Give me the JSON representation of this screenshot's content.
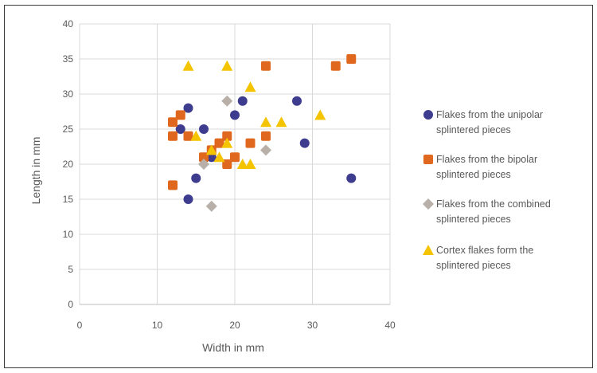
{
  "chart_data": {
    "type": "scatter",
    "title": "",
    "xlabel": "Width in mm",
    "ylabel": "Length in mm",
    "xlim": [
      0,
      40
    ],
    "ylim": [
      0,
      40
    ],
    "x_ticks": [
      "0",
      "10",
      "20",
      "30",
      "40"
    ],
    "y_ticks": [
      "0",
      "5",
      "10",
      "15",
      "20",
      "25",
      "30",
      "35",
      "40"
    ],
    "grid": true,
    "legend_position": "right",
    "series": [
      {
        "name": "Flakes from the unipolar splintered pieces",
        "color": "#3d3c8f",
        "marker": "circle",
        "points": [
          {
            "x": 14,
            "y": 28
          },
          {
            "x": 16,
            "y": 25
          },
          {
            "x": 20,
            "y": 27
          },
          {
            "x": 21,
            "y": 29
          },
          {
            "x": 28,
            "y": 29
          },
          {
            "x": 29,
            "y": 23
          },
          {
            "x": 15,
            "y": 18
          },
          {
            "x": 14,
            "y": 15
          },
          {
            "x": 35,
            "y": 18
          },
          {
            "x": 13,
            "y": 25
          },
          {
            "x": 17,
            "y": 21
          }
        ]
      },
      {
        "name": "Flakes from the bipolar splintered pieces",
        "color": "#e0681e",
        "marker": "square",
        "points": [
          {
            "x": 12,
            "y": 17
          },
          {
            "x": 12,
            "y": 24
          },
          {
            "x": 13,
            "y": 27
          },
          {
            "x": 14,
            "y": 24
          },
          {
            "x": 12,
            "y": 26
          },
          {
            "x": 16,
            "y": 21
          },
          {
            "x": 17,
            "y": 22
          },
          {
            "x": 18,
            "y": 23
          },
          {
            "x": 19,
            "y": 24
          },
          {
            "x": 19,
            "y": 20
          },
          {
            "x": 20,
            "y": 21
          },
          {
            "x": 22,
            "y": 23
          },
          {
            "x": 24,
            "y": 24
          },
          {
            "x": 24,
            "y": 34
          },
          {
            "x": 33,
            "y": 34
          },
          {
            "x": 35,
            "y": 35
          }
        ]
      },
      {
        "name": "Flakes from the combined splintered pieces",
        "color": "#b8b0a8",
        "marker": "diamond",
        "points": [
          {
            "x": 17,
            "y": 14
          },
          {
            "x": 24,
            "y": 22
          },
          {
            "x": 19,
            "y": 29
          },
          {
            "x": 16,
            "y": 20
          }
        ]
      },
      {
        "name": "Cortex flakes form the splintered pieces",
        "color": "#f4c400",
        "marker": "triangle",
        "points": [
          {
            "x": 14,
            "y": 34
          },
          {
            "x": 19,
            "y": 34
          },
          {
            "x": 22,
            "y": 31
          },
          {
            "x": 26,
            "y": 26
          },
          {
            "x": 31,
            "y": 27
          },
          {
            "x": 24,
            "y": 26
          },
          {
            "x": 22,
            "y": 20
          },
          {
            "x": 21,
            "y": 20
          },
          {
            "x": 17,
            "y": 22
          },
          {
            "x": 18,
            "y": 21
          },
          {
            "x": 15,
            "y": 24
          },
          {
            "x": 19,
            "y": 23
          }
        ]
      }
    ]
  }
}
